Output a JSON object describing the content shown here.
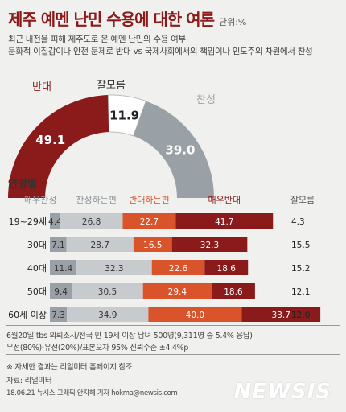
{
  "header": {
    "title": "제주 예멘 난민 수용에 대한 여론",
    "unit": "단위:%",
    "subtitle_line1": "최근 내전을 피해 제주도로 온 예멘 난민의 수용 여부",
    "subtitle_line2": "문화적 이질감이나 안전 문제로 반대 vs 국제사회에서의 책임이나 인도주의 차원에서 찬성"
  },
  "colors": {
    "title": "#8b1a1a",
    "strong_oppose": "#8b1a1a",
    "oppose": "#d9532b",
    "support": "#c8cbcd",
    "strong_support": "#9aa1a6",
    "dont_know": "#ffffff"
  },
  "chart_data": [
    {
      "type": "pie",
      "chart_style": "half-donut",
      "slices": [
        {
          "name": "반대",
          "value": 49.1
        },
        {
          "name": "잘모름",
          "value": 11.9
        },
        {
          "name": "찬성",
          "value": 39.0
        }
      ]
    },
    {
      "type": "bar",
      "orientation": "horizontal",
      "stacked": true,
      "title": "연령별",
      "categories": [
        "19~29세",
        "30대",
        "40대",
        "50대",
        "60세 이상"
      ],
      "series": [
        {
          "name": "매우찬성",
          "values": [
            4.4,
            7.1,
            11.4,
            9.4,
            7.3
          ]
        },
        {
          "name": "찬성하는편",
          "values": [
            26.8,
            28.7,
            32.3,
            30.5,
            34.9
          ]
        },
        {
          "name": "반대하는편",
          "values": [
            22.7,
            16.5,
            22.6,
            29.4,
            40.0
          ]
        },
        {
          "name": "매우반대",
          "values": [
            41.7,
            32.3,
            18.6,
            18.6,
            33.7
          ]
        },
        {
          "name": "잘모름",
          "values": [
            4.3,
            15.5,
            15.2,
            12.1,
            12.0
          ]
        }
      ],
      "value_labels": [
        [
          "4.4",
          "26.8",
          "22.7",
          "41.7",
          "4.3"
        ],
        [
          "7.1",
          "28.7",
          "16.5",
          "32.3",
          "15.5"
        ],
        [
          "11.4",
          "32.3",
          "22.6",
          "18.6",
          "15.2"
        ],
        [
          "9.4",
          "30.5",
          "29.4",
          "18.6",
          "12.1"
        ],
        [
          "7.3",
          "34.9",
          "40.0",
          "33.7",
          "12.0"
        ]
      ]
    }
  ],
  "footer": {
    "line1": "6월20일 tbs 의뢰조사/전국 만 19세 이상 남녀 500명(9,311명 중 5.4% 응답)",
    "line2": "무선(80%)-유선(20%)/표본오차 95% 신뢰수준 ±4.4%p",
    "note": "※ 자세한 결과는 리얼미터 홈페이지 참조",
    "source": "자료: 리얼미터",
    "credit": "18.06.21 뉴시스 그래픽 안지혜 기자 hokma@newsis.com",
    "logo": "NEWSIS"
  }
}
